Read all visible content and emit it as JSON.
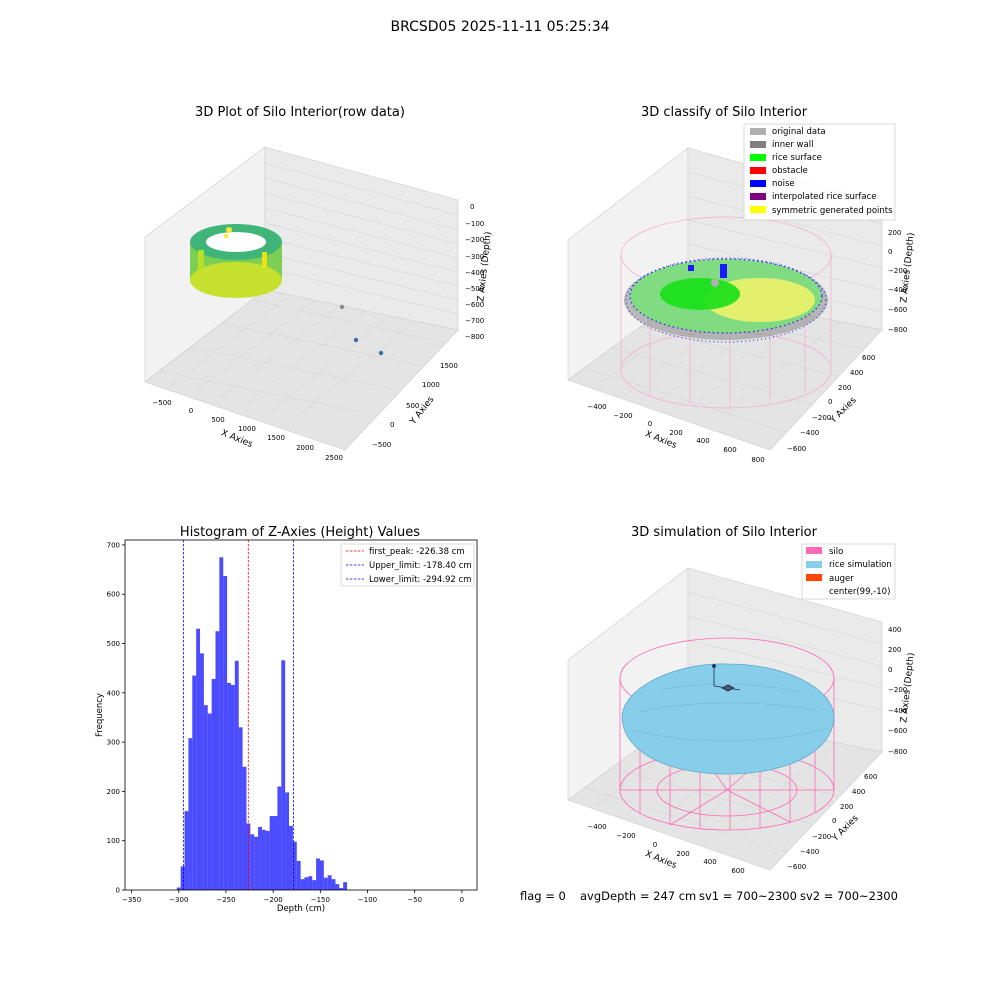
{
  "figure": {
    "suptitle": "BRCSD05 2025-11-11 05:25:34",
    "footer": {
      "flag": "flag = 0",
      "avg": "avgDepth = 247 cm",
      "sv1": "sv1 = 700~2300",
      "sv2": "sv2 = 700~2300"
    }
  },
  "chart_data": [
    {
      "type": "scatter3d",
      "title": "3D Plot of Silo Interior(row data)",
      "xlabel": "X Axies",
      "ylabel": "Y Axies",
      "zlabel": "Z Axies (Depth)",
      "xticks": [
        "−500",
        "0",
        "500",
        "1000",
        "1500",
        "2000",
        "2500"
      ],
      "yticks": [
        "−500",
        "0",
        "500",
        "1000",
        "1500"
      ],
      "zticks": [
        "0",
        "−100",
        "−200",
        "−300",
        "−400",
        "−500",
        "−600",
        "−700",
        "−800"
      ],
      "colormap": "viridis"
    },
    {
      "type": "scatter3d",
      "title": "3D classify of Silo Interior",
      "xlabel": "X Axies",
      "ylabel": "Y Axies",
      "zlabel": "Z Axies (Depth)",
      "xticks": [
        "−400",
        "−200",
        "0",
        "200",
        "400",
        "600",
        "800"
      ],
      "yticks": [
        "−600",
        "−400",
        "−200",
        "0",
        "200",
        "400",
        "600"
      ],
      "zticks": [
        "200",
        "0",
        "−200",
        "−400",
        "−600",
        "−800"
      ],
      "legend": [
        {
          "label": "original data",
          "color": "#b0b0b0"
        },
        {
          "label": "inner wall",
          "color": "#808080"
        },
        {
          "label": "rice surface",
          "color": "#00ff00"
        },
        {
          "label": "obstacle",
          "color": "#ff0000"
        },
        {
          "label": "noise",
          "color": "#0000ff"
        },
        {
          "label": "interpolated rice surface",
          "color": "#800080"
        },
        {
          "label": "symmetric generated points",
          "color": "#ffff00"
        }
      ],
      "legend_loc": "upper right"
    },
    {
      "type": "bar",
      "title": "Histogram of Z-Axies (Height) Values",
      "xlabel": "Depth (cm)",
      "ylabel": "Frequency",
      "xlim": [
        -357,
        16
      ],
      "ylim": [
        0,
        710
      ],
      "xticks": [
        -350,
        -300,
        -250,
        -200,
        -150,
        -100,
        -50,
        0
      ],
      "yticks": [
        0,
        100,
        200,
        300,
        400,
        500,
        600,
        700
      ],
      "bin_width": 4.1,
      "bin_start": -302.1,
      "values": [
        5,
        48,
        160,
        308,
        435,
        530,
        480,
        375,
        358,
        428,
        525,
        675,
        637,
        420,
        416,
        465,
        330,
        250,
        135,
        113,
        108,
        128,
        122,
        120,
        150,
        150,
        210,
        466,
        198,
        130,
        98,
        59,
        22,
        26,
        28,
        20,
        64,
        60,
        25,
        30,
        22,
        12,
        4,
        16
      ],
      "bar_color": "#0000ff",
      "bar_alpha": 0.7,
      "lines": [
        {
          "label": "first_peak: -226.38 cm",
          "x": -226.38,
          "color": "#ff0000"
        },
        {
          "label": "Upper_limit: -178.40 cm",
          "x": -178.4,
          "color": "#0000ff"
        },
        {
          "label": "Lower_limit: -294.92 cm",
          "x": -294.92,
          "color": "#0000ff"
        }
      ],
      "legend_loc": "upper right"
    },
    {
      "type": "surface3d",
      "title": "3D simulation of Silo Interior",
      "xlabel": "X Axies",
      "ylabel": "Y Axies",
      "zlabel": "Z Axies (Depth)",
      "xticks": [
        "−400",
        "−200",
        "0",
        "200",
        "400",
        "600"
      ],
      "yticks": [
        "−600",
        "−400",
        "−200",
        "0",
        "200",
        "400",
        "600"
      ],
      "zticks": [
        "400",
        "200",
        "0",
        "−200",
        "−400",
        "−600",
        "−800"
      ],
      "legend": [
        {
          "label": "silo",
          "color": "#ff69b4"
        },
        {
          "label": "rice simulation",
          "color": "#87ceeb"
        },
        {
          "label": "auger",
          "color": "#ff4500"
        },
        {
          "label": "center(99,-10)",
          "color": ""
        }
      ],
      "legend_loc": "upper right"
    }
  ]
}
